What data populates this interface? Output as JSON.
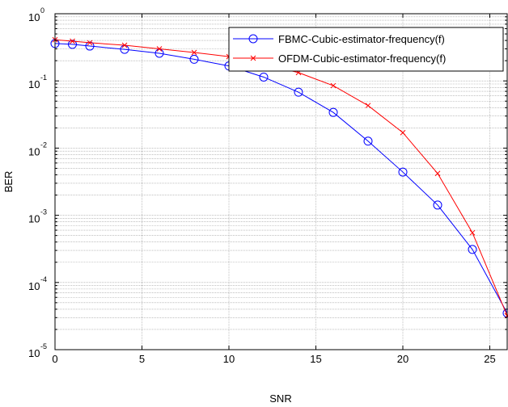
{
  "chart_data": {
    "type": "line",
    "title": "",
    "xlabel": "SNR",
    "ylabel": "BER",
    "xlim": [
      0,
      26
    ],
    "ylim": [
      1e-05,
      1
    ],
    "yscale": "log",
    "grid": true,
    "legend_position": "top-right",
    "x_ticks": [
      0,
      5,
      10,
      15,
      20,
      25
    ],
    "x_tick_labels": [
      "0",
      "5",
      "10",
      "15",
      "20",
      "25"
    ],
    "y_ticks": [
      1e-05,
      0.0001,
      0.001,
      0.01,
      0.1,
      1
    ],
    "y_tick_labels": [
      {
        "base": "10",
        "exp": "-5"
      },
      {
        "base": "10",
        "exp": "-4"
      },
      {
        "base": "10",
        "exp": "-3"
      },
      {
        "base": "10",
        "exp": "-2"
      },
      {
        "base": "10",
        "exp": "-1"
      },
      {
        "base": "10",
        "exp": "0"
      }
    ],
    "series": [
      {
        "name": "FBMC-Cubic-estimator-frequency(f)",
        "color": "#0000ff",
        "marker": "circle",
        "x": [
          0,
          1,
          2,
          4,
          6,
          8,
          10,
          12,
          14,
          16,
          18,
          20,
          22,
          24,
          26
        ],
        "y": [
          0.36,
          0.35,
          0.33,
          0.295,
          0.258,
          0.21,
          0.167,
          0.114,
          0.068,
          0.034,
          0.0127,
          0.0044,
          0.00142,
          0.00031,
          3.5e-05
        ]
      },
      {
        "name": "OFDM-Cubic-estimator-frequency(f)",
        "color": "#ff0000",
        "marker": "x",
        "x": [
          0,
          1,
          2,
          4,
          6,
          8,
          10,
          12,
          14,
          16,
          18,
          20,
          22,
          24,
          26
        ],
        "y": [
          0.41,
          0.39,
          0.37,
          0.34,
          0.3,
          0.265,
          0.23,
          0.178,
          0.133,
          0.085,
          0.043,
          0.017,
          0.0042,
          0.00055,
          3.2e-05
        ]
      }
    ]
  }
}
